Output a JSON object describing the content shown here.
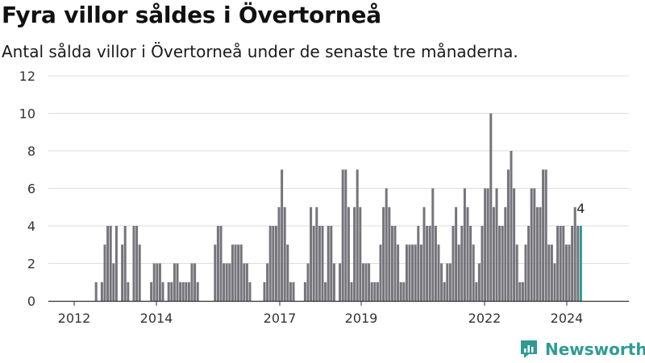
{
  "title": "Fyra villor såldes i Övertorneå",
  "subtitle": "Antal sålda villor i Övertorneå under de senaste tre månaderna.",
  "brand": {
    "name": "Newsworthy"
  },
  "colors": {
    "bar": "#75747b",
    "highlight": "#2f9b94",
    "grid": "#dddddd",
    "axis": "#333333"
  },
  "chart_data": {
    "type": "bar",
    "ylim": [
      0,
      12
    ],
    "yticks": [
      0,
      2,
      4,
      6,
      8,
      10,
      12
    ],
    "xticks": [
      "2012",
      "2014",
      "2017",
      "2019",
      "2022",
      "2024"
    ],
    "grid": true,
    "highlight_last": true,
    "last_label": "4",
    "values": [
      0,
      0,
      0,
      0,
      0,
      0,
      0,
      1,
      0,
      1,
      3,
      4,
      4,
      2,
      4,
      0,
      3,
      4,
      1,
      0,
      4,
      4,
      3,
      0,
      0,
      0,
      1,
      2,
      2,
      2,
      1,
      0,
      1,
      1,
      2,
      2,
      1,
      1,
      1,
      1,
      2,
      2,
      1,
      0,
      0,
      0,
      0,
      0,
      3,
      4,
      4,
      2,
      2,
      2,
      3,
      3,
      3,
      3,
      2,
      2,
      1,
      0,
      0,
      0,
      0,
      1,
      2,
      4,
      4,
      4,
      5,
      7,
      5,
      3,
      1,
      1,
      0,
      0,
      0,
      1,
      2,
      5,
      4,
      5,
      4,
      4,
      1,
      4,
      4,
      2,
      0,
      2,
      7,
      7,
      5,
      1,
      5,
      7,
      5,
      2,
      2,
      2,
      1,
      1,
      1,
      3,
      5,
      6,
      5,
      4,
      4,
      3,
      1,
      1,
      3,
      3,
      3,
      3,
      4,
      3,
      5,
      4,
      4,
      6,
      4,
      3,
      2,
      1,
      2,
      2,
      4,
      5,
      3,
      4,
      6,
      5,
      4,
      3,
      1,
      2,
      4,
      6,
      6,
      10,
      5,
      6,
      4,
      4,
      5,
      7,
      8,
      6,
      3,
      1,
      1,
      3,
      4,
      6,
      6,
      5,
      5,
      7,
      7,
      3,
      3,
      2,
      4,
      4,
      4,
      3,
      3,
      4,
      5,
      4,
      4
    ],
    "bar_slots": 185
  }
}
